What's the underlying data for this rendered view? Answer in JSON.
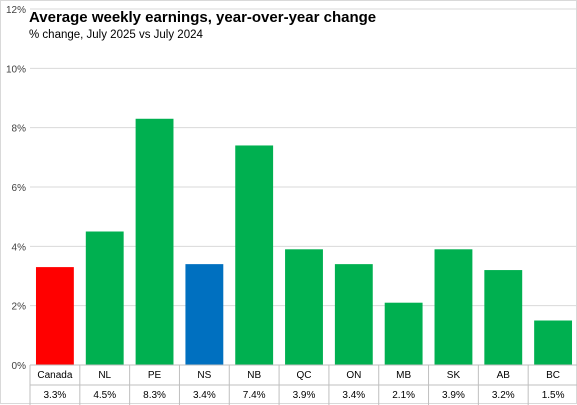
{
  "chart_data": {
    "type": "bar",
    "title": "Average weekly earnings, year-over-year change",
    "subtitle": "% change, July 2025 vs July 2024",
    "categories": [
      "Canada",
      "NL",
      "PE",
      "NS",
      "NB",
      "QC",
      "ON",
      "MB",
      "SK",
      "AB",
      "BC"
    ],
    "values": [
      3.3,
      4.5,
      8.3,
      3.4,
      7.4,
      3.9,
      3.4,
      2.1,
      3.9,
      3.2,
      1.5
    ],
    "value_labels": [
      "3.3%",
      "4.5%",
      "8.3%",
      "3.4%",
      "7.4%",
      "3.9%",
      "3.4%",
      "2.1%",
      "3.9%",
      "3.2%",
      "1.5%"
    ],
    "colors": [
      "#ff0000",
      "#00b050",
      "#00b050",
      "#0070c0",
      "#00b050",
      "#00b050",
      "#00b050",
      "#00b050",
      "#00b050",
      "#00b050",
      "#00b050"
    ],
    "ylim": [
      0,
      12
    ],
    "yticks": [
      0,
      2,
      4,
      6,
      8,
      10,
      12
    ],
    "ytick_labels": [
      "0%",
      "2%",
      "4%",
      "6%",
      "8%",
      "10%",
      "12%"
    ],
    "grid": true,
    "data_table": true
  }
}
